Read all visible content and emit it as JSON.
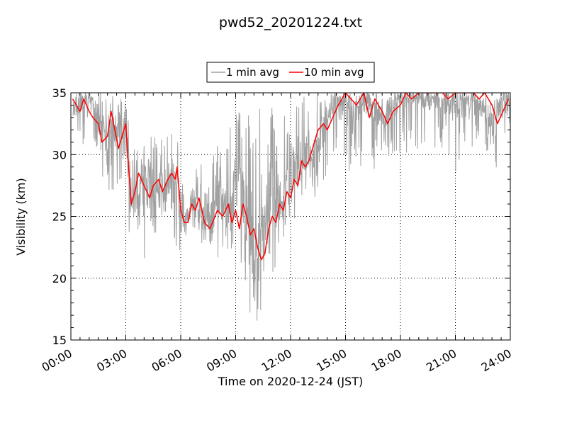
{
  "chart_data": {
    "type": "line",
    "title": "pwd52_20201224.txt",
    "xlabel": "Time on 2020-12-24 (JST)",
    "ylabel": "Visibility (km)",
    "xlim": [
      "00:00",
      "24:00"
    ],
    "ylim": [
      15,
      35
    ],
    "x_ticks": [
      "00:00",
      "03:00",
      "06:00",
      "09:00",
      "12:00",
      "15:00",
      "18:00",
      "21:00",
      "24:00"
    ],
    "y_ticks": [
      "15",
      "20",
      "25",
      "30",
      "35"
    ],
    "grid": true,
    "grid_style": "dotted",
    "legend": {
      "position": "top-center-outside",
      "entries": [
        "1 min avg",
        "10 min avg"
      ]
    },
    "series": [
      {
        "name": "1 min avg",
        "color": "#a0a0a0",
        "resolution": "1 min",
        "mean_envelope": {
          "x_hours": [
            0.1,
            0.5,
            1,
            1.5,
            2,
            2.5,
            2.9,
            3.1,
            3.3,
            3.6,
            4,
            4.5,
            5,
            5.5,
            5.8,
            6,
            6.3,
            6.6,
            7,
            7.5,
            8,
            8.5,
            9,
            9.3,
            9.6,
            10,
            10.3,
            10.6,
            11,
            11.4,
            11.8,
            12,
            12.3,
            12.6,
            13,
            13.4,
            14,
            14.5,
            15,
            15.5,
            16,
            16.5,
            17,
            17.5,
            18,
            18.5,
            19,
            19.5,
            20,
            20.5,
            21,
            21.5,
            22,
            22.5,
            23,
            23.5,
            23.9
          ],
          "y_km": [
            33.5,
            34,
            34.5,
            33,
            31,
            33,
            32,
            30,
            26.5,
            26,
            28,
            27.5,
            27,
            28.5,
            28,
            24.5,
            24.5,
            26.5,
            25.5,
            24,
            26,
            25.5,
            27,
            26,
            24,
            23,
            21.5,
            24.5,
            27,
            26,
            27.5,
            28,
            29,
            28.5,
            31,
            30,
            33.5,
            34.5,
            34,
            33,
            34.5,
            33.5,
            33,
            34,
            34.5,
            34.5,
            34.5,
            34.5,
            34.5,
            34,
            34.5,
            34,
            34.5,
            34,
            32.5,
            34,
            34.5
          ],
          "min_km": [
            32.5,
            30,
            31,
            28,
            27,
            26.5,
            29,
            23.5,
            22.5,
            23,
            21,
            23,
            24,
            25,
            21,
            22.5,
            23,
            24.5,
            22.5,
            22,
            21.5,
            22,
            21,
            19,
            18,
            15.5,
            17,
            18,
            20,
            22,
            23,
            24,
            25,
            26.5,
            27,
            26,
            28.5,
            29.5,
            29,
            28,
            28.5,
            28,
            29,
            28.5,
            29.5,
            30,
            30.5,
            30,
            30.5,
            30.5,
            28.5,
            29.5,
            30.5,
            31,
            29,
            28.5,
            29.5
          ],
          "max_km": [
            35,
            35,
            35,
            35,
            35,
            35,
            35,
            33.5,
            32,
            31,
            33,
            32,
            33,
            33,
            32,
            27.5,
            28,
            30,
            29.5,
            30,
            31,
            31,
            35,
            35,
            35,
            35,
            34,
            33,
            34,
            35,
            35,
            35,
            35,
            35,
            35,
            35,
            35,
            35,
            35,
            35,
            35,
            35,
            35,
            35,
            35,
            35,
            35,
            35,
            35,
            35,
            35,
            35,
            35,
            35,
            35,
            35,
            35
          ]
        }
      },
      {
        "name": "10 min avg",
        "color": "#ff0000",
        "x_hours": [
          0.1,
          0.3,
          0.5,
          0.7,
          1,
          1.2,
          1.5,
          1.7,
          2,
          2.2,
          2.4,
          2.6,
          2.8,
          3,
          3.1,
          3.3,
          3.5,
          3.7,
          4,
          4.3,
          4.5,
          4.8,
          5,
          5.3,
          5.5,
          5.7,
          5.8,
          6,
          6.2,
          6.4,
          6.6,
          6.8,
          7,
          7.3,
          7.6,
          8,
          8.3,
          8.6,
          8.8,
          9,
          9.2,
          9.4,
          9.6,
          9.8,
          10,
          10.2,
          10.4,
          10.6,
          10.8,
          11,
          11.2,
          11.4,
          11.6,
          11.8,
          12,
          12.2,
          12.4,
          12.6,
          12.8,
          13,
          13.2,
          13.5,
          13.8,
          14,
          14.3,
          14.6,
          15,
          15.3,
          15.6,
          16,
          16.3,
          16.6,
          17,
          17.3,
          17.6,
          18,
          18.3,
          18.6,
          19,
          19.3,
          19.6,
          20,
          20.3,
          20.6,
          21,
          21.3,
          21.6,
          22,
          22.3,
          22.6,
          23,
          23.3,
          23.6,
          23.9
        ],
        "y_km": [
          34.5,
          34,
          33.5,
          34.5,
          33.5,
          33,
          32.5,
          31,
          31.5,
          33.5,
          32,
          30.5,
          31.5,
          32.5,
          30,
          26,
          27,
          28.5,
          27.5,
          26.5,
          27.5,
          28,
          27,
          28,
          28.5,
          28,
          29,
          25.5,
          24.5,
          24.5,
          26,
          25.5,
          26.5,
          24.5,
          24,
          25.5,
          25,
          26,
          24.5,
          25.5,
          24,
          26,
          25,
          23.5,
          24,
          22.5,
          21.5,
          22,
          24,
          25,
          24.5,
          26,
          25.5,
          27,
          26.5,
          28,
          27.5,
          29.5,
          29,
          29.5,
          30.5,
          32,
          32.5,
          32,
          33,
          34,
          35,
          34.5,
          34,
          35,
          33,
          34.5,
          33.5,
          32.5,
          33.5,
          34,
          35,
          34.5,
          35,
          35,
          35,
          35,
          35,
          34.5,
          35,
          35,
          35,
          35,
          34.5,
          35,
          34,
          32.5,
          33.5,
          34.5
        ]
      }
    ]
  }
}
